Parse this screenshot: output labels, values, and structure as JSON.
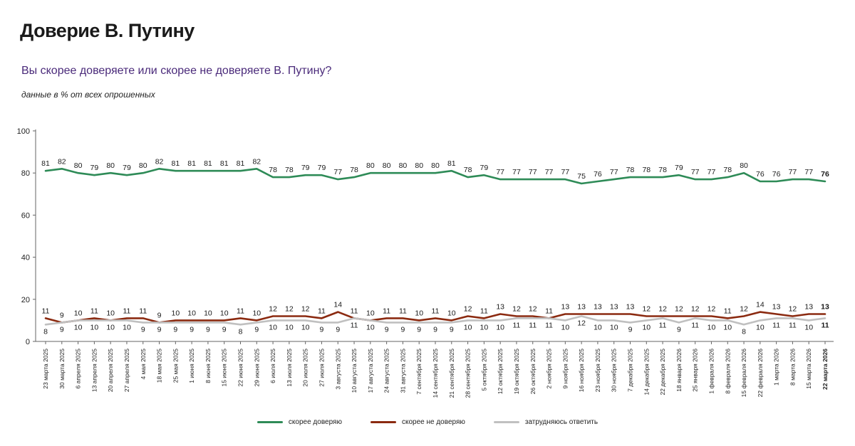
{
  "title": "Доверие В. Путину",
  "subtitle": "Вы скорее доверяете или скорее не доверяете В. Путину?",
  "note": "данные в % от всех опрошенных",
  "colors": {
    "trust": "#2e8b57",
    "distrust": "#8b2a10",
    "unsure": "#c0c0c0"
  },
  "chart_data": {
    "type": "line",
    "ylim": [
      0,
      100
    ],
    "yticks": [
      0,
      20,
      40,
      60,
      80,
      100
    ],
    "grid": false,
    "legend_position": "bottom-center",
    "categories": [
      "23 марта 2025",
      "30 марта 2025",
      "6 апреля 2025",
      "13 апреля 2025",
      "20 апреля 2025",
      "27 апреля 2025",
      "4 мая 2025",
      "18 мая 2025",
      "25 мая 2025",
      "1 июня 2025",
      "8 июня 2025",
      "15 июня 2025",
      "22 июня 2025",
      "29 июня 2025",
      "6 июля 2025",
      "13 июля 2025",
      "20 июля 2025",
      "27 июля 2025",
      "3 августа 2025",
      "10 августа 2025",
      "17 августа 2025",
      "24 августа 2025",
      "31 августа 2025",
      "7 сентября 2025",
      "14 сентября 2025",
      "21 сентября 2025",
      "28 сентября 2025",
      "5 октября 2025",
      "12 октября 2025",
      "19 октября 2025",
      "26 октября 2025",
      "2 ноября 2025",
      "9 ноября 2025",
      "16 ноября 2025",
      "23 ноября 2025",
      "30 ноября 2025",
      "7 декабря 2025",
      "14 декабря 2025",
      "22 декабря 2025",
      "18 января 2026",
      "25 января 2026",
      "1 февраля 2026",
      "8 февраля 2026",
      "15 февраля 2026",
      "22 февраля 2026",
      "1 марта 2026",
      "8 марта 2026",
      "15 марта 2026",
      "22 марта 2026"
    ],
    "series": [
      {
        "name": "скорее доверяю",
        "key": "trust",
        "values": [
          81,
          82,
          80,
          79,
          80,
          79,
          80,
          82,
          81,
          81,
          81,
          81,
          81,
          82,
          78,
          78,
          79,
          79,
          77,
          78,
          80,
          80,
          80,
          80,
          80,
          81,
          78,
          79,
          77,
          77,
          77,
          77,
          77,
          75,
          76,
          77,
          78,
          78,
          78,
          79,
          77,
          77,
          78,
          80,
          76,
          76,
          77,
          77,
          76
        ]
      },
      {
        "name": "скорее не доверяю",
        "key": "distrust",
        "values": [
          11,
          9,
          10,
          11,
          10,
          11,
          11,
          9,
          10,
          10,
          10,
          10,
          11,
          10,
          12,
          12,
          12,
          11,
          14,
          11,
          10,
          11,
          11,
          10,
          11,
          10,
          12,
          11,
          13,
          12,
          12,
          11,
          13,
          13,
          13,
          13,
          13,
          12,
          12,
          12,
          12,
          12,
          11,
          12,
          14,
          13,
          12,
          13,
          13
        ]
      },
      {
        "name": "затрудняюсь ответить",
        "key": "unsure",
        "values": [
          8,
          9,
          10,
          10,
          10,
          10,
          9,
          9,
          9,
          9,
          9,
          9,
          8,
          9,
          10,
          10,
          10,
          9,
          9,
          11,
          10,
          9,
          9,
          9,
          9,
          9,
          10,
          10,
          10,
          11,
          11,
          11,
          10,
          12,
          10,
          10,
          9,
          10,
          11,
          9,
          11,
          10,
          10,
          8,
          10,
          11,
          11,
          10,
          11
        ]
      }
    ]
  }
}
